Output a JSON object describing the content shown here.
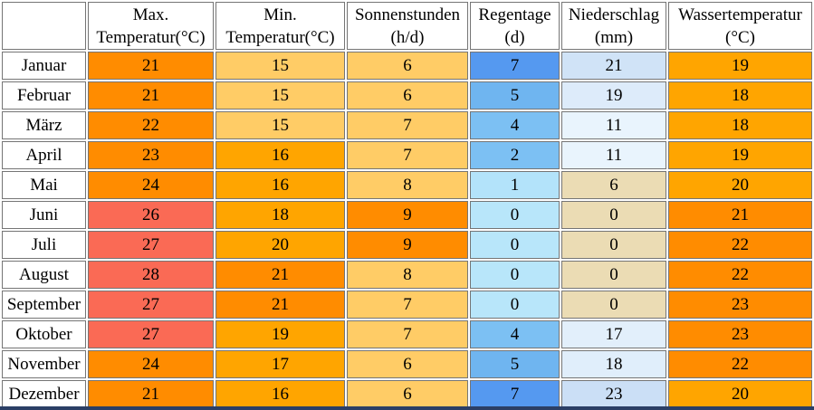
{
  "table": {
    "columns": [
      {
        "label": ""
      },
      {
        "label": "Max.\nTemperatur(°C)"
      },
      {
        "label": "Min.\nTemperatur(°C)"
      },
      {
        "label": "Sonnenstunden\n(h/d)"
      },
      {
        "label": "Regentage\n(d)"
      },
      {
        "label": "Niederschlag\n(mm)"
      },
      {
        "label": "Wassertemperatur\n(°C)"
      }
    ],
    "rows": [
      {
        "month": "Januar",
        "cells": [
          {
            "value": "21",
            "bg": "#FF8C00"
          },
          {
            "value": "15",
            "bg": "#FFCC66"
          },
          {
            "value": "6",
            "bg": "#FFCC66"
          },
          {
            "value": "7",
            "bg": "#5599F0"
          },
          {
            "value": "21",
            "bg": "#D0E3F7"
          },
          {
            "value": "19",
            "bg": "#FFA500"
          }
        ]
      },
      {
        "month": "Februar",
        "cells": [
          {
            "value": "21",
            "bg": "#FF8C00"
          },
          {
            "value": "15",
            "bg": "#FFCC66"
          },
          {
            "value": "6",
            "bg": "#FFCC66"
          },
          {
            "value": "5",
            "bg": "#6FB5F0"
          },
          {
            "value": "19",
            "bg": "#DDEBFA"
          },
          {
            "value": "18",
            "bg": "#FFA500"
          }
        ]
      },
      {
        "month": "März",
        "cells": [
          {
            "value": "22",
            "bg": "#FF8C00"
          },
          {
            "value": "15",
            "bg": "#FFCC66"
          },
          {
            "value": "7",
            "bg": "#FFCC66"
          },
          {
            "value": "4",
            "bg": "#7CC0F3"
          },
          {
            "value": "11",
            "bg": "#E9F4FD"
          },
          {
            "value": "18",
            "bg": "#FFA500"
          }
        ]
      },
      {
        "month": "April",
        "cells": [
          {
            "value": "23",
            "bg": "#FF8C00"
          },
          {
            "value": "16",
            "bg": "#FFA500"
          },
          {
            "value": "7",
            "bg": "#FFCC66"
          },
          {
            "value": "2",
            "bg": "#7CC0F3"
          },
          {
            "value": "11",
            "bg": "#E9F4FD"
          },
          {
            "value": "19",
            "bg": "#FFA500"
          }
        ]
      },
      {
        "month": "Mai",
        "cells": [
          {
            "value": "24",
            "bg": "#FF8C00"
          },
          {
            "value": "16",
            "bg": "#FFA500"
          },
          {
            "value": "8",
            "bg": "#FFCC66"
          },
          {
            "value": "1",
            "bg": "#B3E3FA"
          },
          {
            "value": "6",
            "bg": "#EBDCB4"
          },
          {
            "value": "20",
            "bg": "#FFA500"
          }
        ]
      },
      {
        "month": "Juni",
        "cells": [
          {
            "value": "26",
            "bg": "#FA6A55"
          },
          {
            "value": "18",
            "bg": "#FFA500"
          },
          {
            "value": "9",
            "bg": "#FF8C00"
          },
          {
            "value": "0",
            "bg": "#B8E6FA"
          },
          {
            "value": "0",
            "bg": "#EBDCB4"
          },
          {
            "value": "21",
            "bg": "#FF8C00"
          }
        ]
      },
      {
        "month": "Juli",
        "cells": [
          {
            "value": "27",
            "bg": "#FA6A55"
          },
          {
            "value": "20",
            "bg": "#FFA500"
          },
          {
            "value": "9",
            "bg": "#FF8C00"
          },
          {
            "value": "0",
            "bg": "#B8E6FA"
          },
          {
            "value": "0",
            "bg": "#EBDCB4"
          },
          {
            "value": "22",
            "bg": "#FF8C00"
          }
        ]
      },
      {
        "month": "August",
        "cells": [
          {
            "value": "28",
            "bg": "#FA6A55"
          },
          {
            "value": "21",
            "bg": "#FF8C00"
          },
          {
            "value": "8",
            "bg": "#FFCC66"
          },
          {
            "value": "0",
            "bg": "#B8E6FA"
          },
          {
            "value": "0",
            "bg": "#EBDCB4"
          },
          {
            "value": "22",
            "bg": "#FF8C00"
          }
        ]
      },
      {
        "month": "September",
        "cells": [
          {
            "value": "27",
            "bg": "#FA6A55"
          },
          {
            "value": "21",
            "bg": "#FF8C00"
          },
          {
            "value": "7",
            "bg": "#FFCC66"
          },
          {
            "value": "0",
            "bg": "#B8E6FA"
          },
          {
            "value": "0",
            "bg": "#EBDCB4"
          },
          {
            "value": "23",
            "bg": "#FF8C00"
          }
        ]
      },
      {
        "month": "Oktober",
        "cells": [
          {
            "value": "27",
            "bg": "#FA6A55"
          },
          {
            "value": "19",
            "bg": "#FFA500"
          },
          {
            "value": "7",
            "bg": "#FFCC66"
          },
          {
            "value": "4",
            "bg": "#7CC0F3"
          },
          {
            "value": "17",
            "bg": "#E2EFFB"
          },
          {
            "value": "23",
            "bg": "#FF8C00"
          }
        ]
      },
      {
        "month": "November",
        "cells": [
          {
            "value": "24",
            "bg": "#FF8C00"
          },
          {
            "value": "17",
            "bg": "#FFA500"
          },
          {
            "value": "6",
            "bg": "#FFCC66"
          },
          {
            "value": "5",
            "bg": "#6FB5F0"
          },
          {
            "value": "18",
            "bg": "#E0EEFB"
          },
          {
            "value": "22",
            "bg": "#FF8C00"
          }
        ]
      },
      {
        "month": "Dezember",
        "cells": [
          {
            "value": "21",
            "bg": "#FF8C00"
          },
          {
            "value": "16",
            "bg": "#FFA500"
          },
          {
            "value": "6",
            "bg": "#FFCC66"
          },
          {
            "value": "7",
            "bg": "#5599F0"
          },
          {
            "value": "23",
            "bg": "#CBDFF6"
          },
          {
            "value": "20",
            "bg": "#FFA500"
          }
        ]
      }
    ]
  },
  "colors": {
    "border": "#757575",
    "bottom_bar": "#2B3F66",
    "hot": "#FA6A55",
    "warm": "#FF8C00",
    "mild": "#FFA500",
    "light_orange": "#FFCC66",
    "rain_strong": "#5599F0",
    "rain_light": "#B8E6FA",
    "dry_tan": "#EBDCB4"
  },
  "chart_data": {
    "type": "table",
    "categories": [
      "Januar",
      "Februar",
      "März",
      "April",
      "Mai",
      "Juni",
      "Juli",
      "August",
      "September",
      "Oktober",
      "November",
      "Dezember"
    ],
    "series": [
      {
        "name": "Max. Temperatur(°C)",
        "values": [
          21,
          21,
          22,
          23,
          24,
          26,
          27,
          28,
          27,
          27,
          24,
          21
        ]
      },
      {
        "name": "Min. Temperatur(°C)",
        "values": [
          15,
          15,
          15,
          16,
          16,
          18,
          20,
          21,
          21,
          19,
          17,
          16
        ]
      },
      {
        "name": "Sonnenstunden (h/d)",
        "values": [
          6,
          6,
          7,
          7,
          8,
          9,
          9,
          8,
          7,
          7,
          6,
          6
        ]
      },
      {
        "name": "Regentage (d)",
        "values": [
          7,
          5,
          4,
          2,
          1,
          0,
          0,
          0,
          0,
          4,
          5,
          7
        ]
      },
      {
        "name": "Niederschlag (mm)",
        "values": [
          21,
          19,
          11,
          11,
          6,
          0,
          0,
          0,
          0,
          17,
          18,
          23
        ]
      },
      {
        "name": "Wassertemperatur (°C)",
        "values": [
          19,
          18,
          18,
          19,
          20,
          21,
          22,
          22,
          23,
          23,
          22,
          20
        ]
      }
    ],
    "title": "",
    "xlabel": "",
    "ylabel": ""
  }
}
